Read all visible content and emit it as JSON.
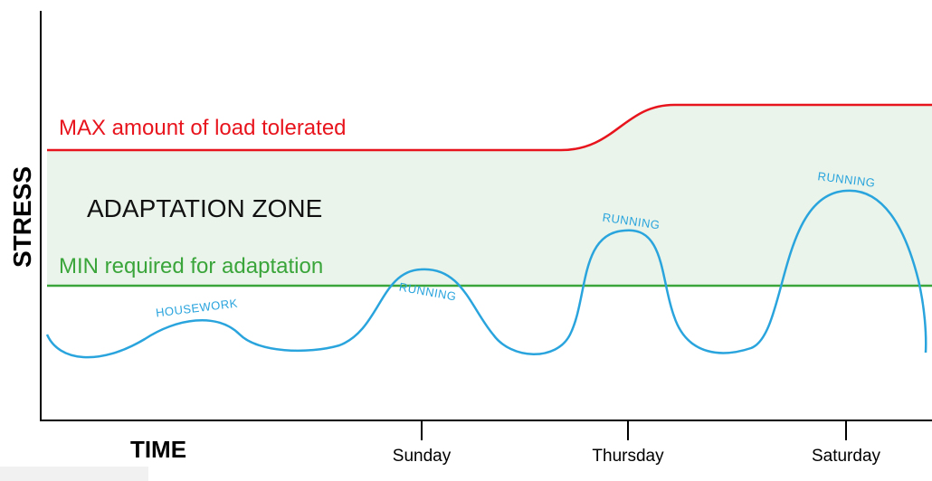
{
  "axes": {
    "y_label": "STRESS",
    "x_label": "TIME"
  },
  "zones": {
    "max_label": "MAX amount of load tolerated",
    "zone_label": "ADAPTATION ZONE",
    "min_label": "MIN required for adaptation"
  },
  "x_ticks": [
    "Sunday",
    "Thursday",
    "Saturday"
  ],
  "activities": {
    "housework": "HOUSEWORK",
    "running_sunday": "RUNNING",
    "running_thursday": "RUNNING",
    "running_saturday": "RUNNING"
  },
  "colors": {
    "max_line": "#e8141d",
    "min_line": "#3aa53a",
    "zone_fill": "#eaf4ea",
    "stress_curve": "#2aa4dd",
    "axis": "#000000"
  }
}
